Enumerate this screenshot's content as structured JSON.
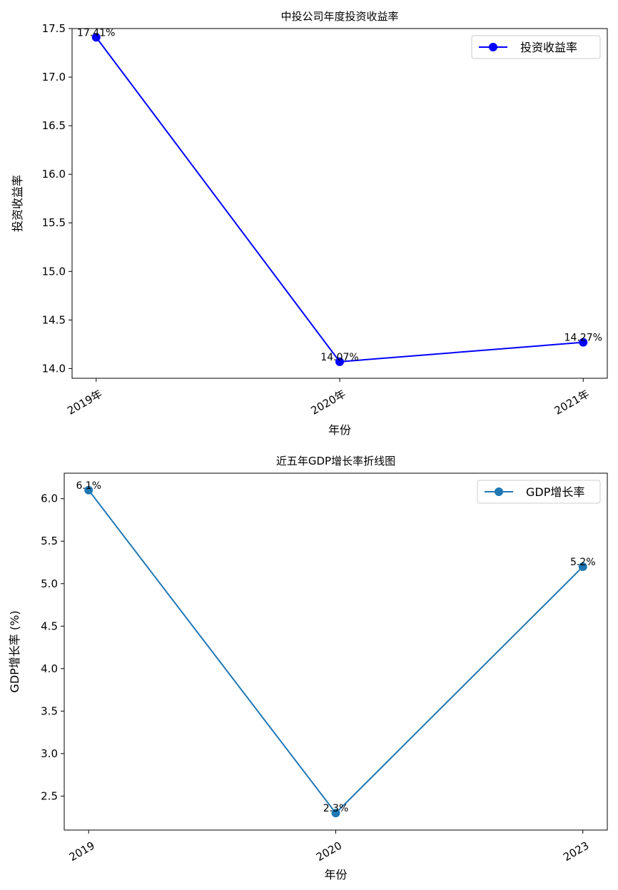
{
  "chart_data": [
    {
      "type": "line",
      "title": "中投公司年度投资收益率",
      "xlabel": "年份",
      "ylabel": "投资收益率",
      "categories": [
        "2019年",
        "2020年",
        "2021年"
      ],
      "series": [
        {
          "name": "投资收益率",
          "values": [
            17.41,
            14.07,
            14.27
          ],
          "color": "#0000ff",
          "marker": "circle"
        }
      ],
      "data_labels": [
        "17.41%",
        "14.07%",
        "14.27%"
      ],
      "ylim": [
        13.9,
        17.5
      ],
      "yticks": [
        14.0,
        14.5,
        15.0,
        15.5,
        16.0,
        16.5,
        17.0,
        17.5
      ],
      "ytick_labels": [
        "14.0",
        "14.5",
        "15.0",
        "15.5",
        "16.0",
        "16.5",
        "17.0",
        "17.5"
      ],
      "xtick_rotation": 30,
      "legend": "top-right",
      "grid": false
    },
    {
      "type": "line",
      "title": "近五年GDP增长率折线图",
      "xlabel": "年份",
      "ylabel": "GDP增长率 (%)",
      "categories": [
        "2019",
        "2020",
        "2023"
      ],
      "series": [
        {
          "name": "GDP增长率",
          "values": [
            6.1,
            2.3,
            5.2
          ],
          "color": "#1f77b4",
          "marker": "circle"
        }
      ],
      "data_labels": [
        "6.1%",
        "2.3%",
        "5.2%"
      ],
      "ylim": [
        2.1,
        6.3
      ],
      "yticks": [
        2.5,
        3.0,
        3.5,
        4.0,
        4.5,
        5.0,
        5.5,
        6.0
      ],
      "ytick_labels": [
        "2.5",
        "3.0",
        "3.5",
        "4.0",
        "4.5",
        "5.0",
        "5.5",
        "6.0"
      ],
      "xtick_rotation": 30,
      "legend": "top-right",
      "grid": false
    }
  ]
}
